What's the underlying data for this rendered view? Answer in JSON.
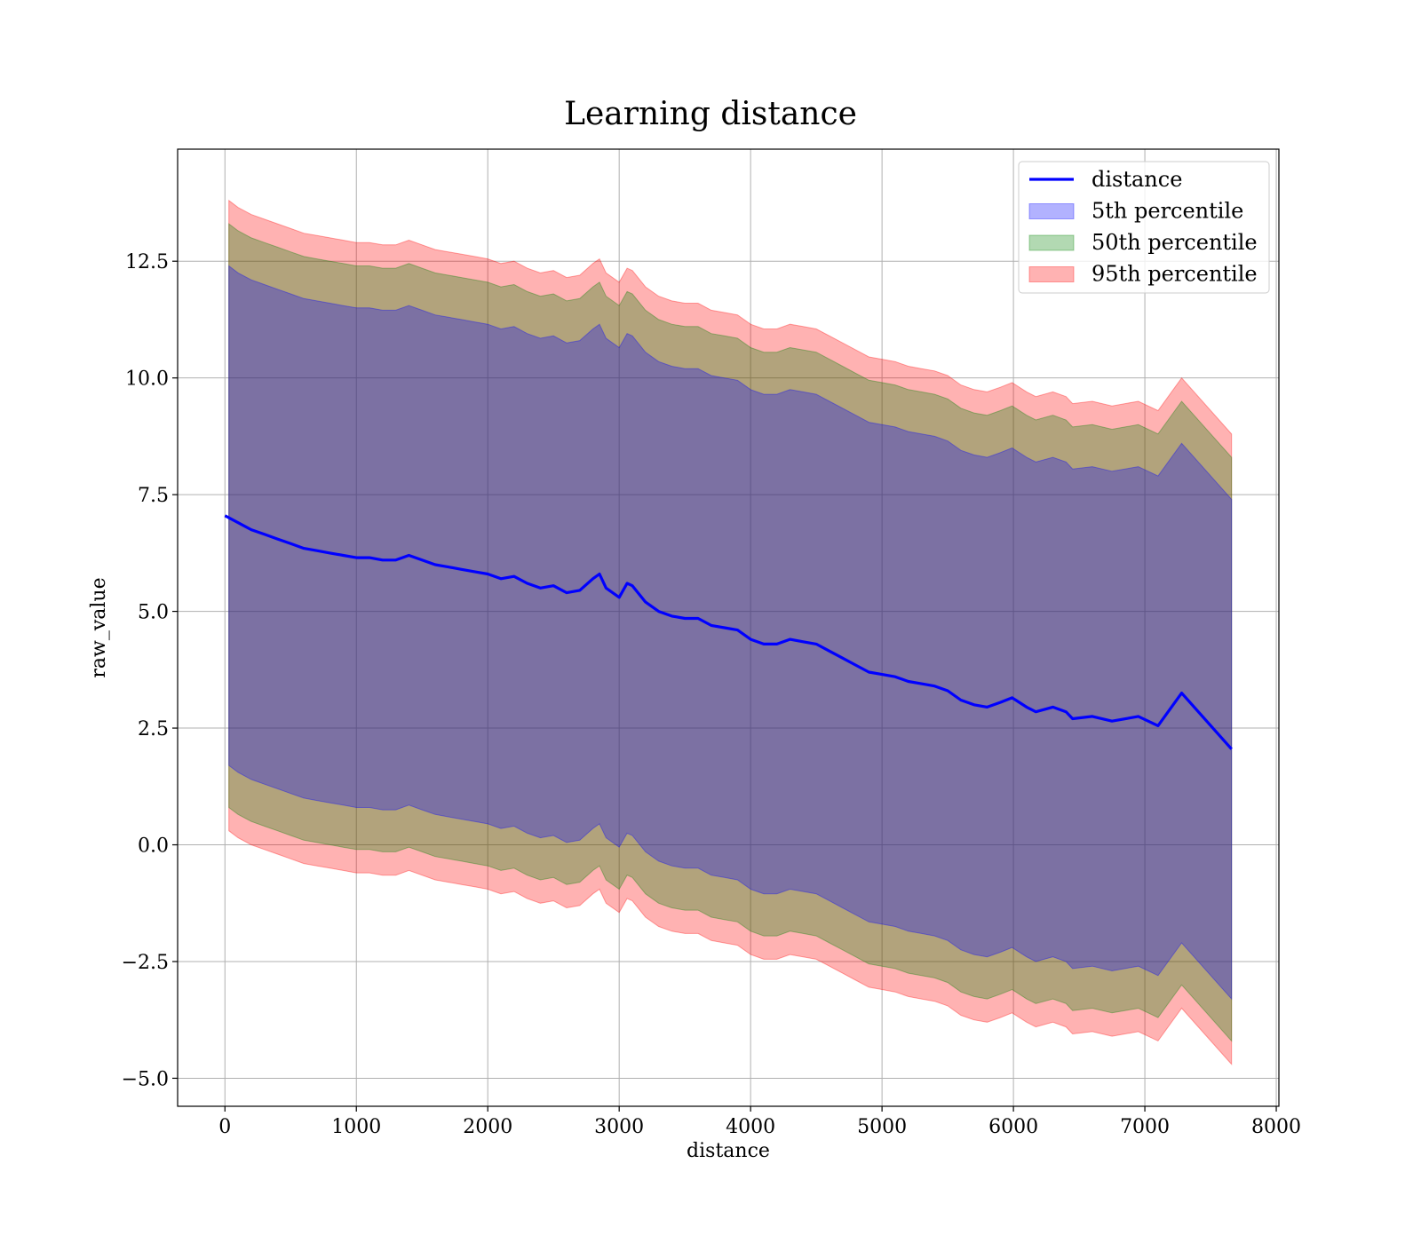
{
  "chart_data": {
    "type": "line",
    "title": "Learning distance",
    "xlabel": "distance",
    "ylabel": "raw_value",
    "xlim": [
      -360,
      8020
    ],
    "ylim": [
      -5.6,
      14.9
    ],
    "x_ticks": [
      0,
      1000,
      2000,
      3000,
      4000,
      5000,
      6000,
      7000,
      8000
    ],
    "x_tick_labels": [
      "0",
      "1000",
      "2000",
      "3000",
      "4000",
      "5000",
      "6000",
      "7000",
      "8000"
    ],
    "y_ticks": [
      -5.0,
      -2.5,
      0.0,
      2.5,
      5.0,
      7.5,
      10.0,
      12.5
    ],
    "y_tick_labels": [
      "−5.0",
      "−2.5",
      "0.0",
      "2.5",
      "5.0",
      "7.5",
      "10.0",
      "12.5"
    ],
    "grid": true,
    "legend_position": "top-right",
    "legend": [
      {
        "label": "distance",
        "kind": "line",
        "color": "#0000ff"
      },
      {
        "label": "5th percentile",
        "kind": "band",
        "color": "#0000ff"
      },
      {
        "label": "50th percentile",
        "kind": "band",
        "color": "#008000"
      },
      {
        "label": "95th percentile",
        "kind": "band",
        "color": "#ff0000"
      }
    ],
    "series": [
      {
        "name": "distance",
        "kind": "line",
        "color": "#0000ff",
        "x": [
          0,
          100,
          200,
          300,
          400,
          500,
          600,
          700,
          800,
          900,
          1000,
          1100,
          1200,
          1300,
          1400,
          1500,
          1600,
          1700,
          1800,
          1900,
          2000,
          2100,
          2200,
          2300,
          2400,
          2500,
          2600,
          2700,
          2800,
          2850,
          2900,
          3000,
          3060,
          3100,
          3200,
          3300,
          3400,
          3500,
          3600,
          3700,
          3800,
          3900,
          4000,
          4100,
          4200,
          4300,
          4400,
          4500,
          4600,
          4700,
          4800,
          4900,
          5000,
          5100,
          5200,
          5300,
          5400,
          5500,
          5600,
          5700,
          5800,
          5900,
          5990,
          6100,
          6170,
          6300,
          6400,
          6450,
          6600,
          6750,
          6950,
          7100,
          7280,
          7660
        ],
        "values": [
          7.05,
          6.9,
          6.75,
          6.65,
          6.55,
          6.45,
          6.35,
          6.3,
          6.25,
          6.2,
          6.15,
          6.15,
          6.1,
          6.1,
          6.2,
          6.1,
          6.0,
          5.95,
          5.9,
          5.85,
          5.8,
          5.7,
          5.75,
          5.6,
          5.5,
          5.55,
          5.4,
          5.45,
          5.7,
          5.8,
          5.5,
          5.3,
          5.6,
          5.55,
          5.2,
          5.0,
          4.9,
          4.85,
          4.85,
          4.7,
          4.65,
          4.6,
          4.4,
          4.3,
          4.3,
          4.4,
          4.35,
          4.3,
          4.15,
          4.0,
          3.85,
          3.7,
          3.65,
          3.6,
          3.5,
          3.45,
          3.4,
          3.3,
          3.1,
          3.0,
          2.95,
          3.05,
          3.15,
          2.95,
          2.85,
          2.95,
          2.85,
          2.7,
          2.75,
          2.65,
          2.75,
          2.55,
          3.25,
          2.05
        ]
      },
      {
        "name": "5th percentile",
        "kind": "band",
        "color": "#0000ff",
        "x": [
          30,
          100,
          200,
          300,
          400,
          500,
          600,
          700,
          800,
          900,
          1000,
          1100,
          1200,
          1300,
          1400,
          1500,
          1600,
          1700,
          1800,
          1900,
          2000,
          2100,
          2200,
          2300,
          2400,
          2500,
          2600,
          2700,
          2800,
          2850,
          2900,
          3000,
          3060,
          3100,
          3200,
          3300,
          3400,
          3500,
          3600,
          3700,
          3800,
          3900,
          4000,
          4100,
          4200,
          4300,
          4400,
          4500,
          4600,
          4700,
          4800,
          4900,
          5000,
          5100,
          5200,
          5300,
          5400,
          5500,
          5600,
          5700,
          5800,
          5900,
          5990,
          6100,
          6170,
          6300,
          6400,
          6450,
          6600,
          6750,
          6950,
          7100,
          7280,
          7660
        ],
        "lower": [
          1.7,
          1.55,
          1.4,
          1.3,
          1.2,
          1.1,
          1.0,
          0.95,
          0.9,
          0.85,
          0.8,
          0.8,
          0.75,
          0.75,
          0.85,
          0.75,
          0.65,
          0.6,
          0.55,
          0.5,
          0.45,
          0.35,
          0.4,
          0.25,
          0.15,
          0.2,
          0.05,
          0.1,
          0.35,
          0.45,
          0.15,
          -0.05,
          0.25,
          0.2,
          -0.15,
          -0.35,
          -0.45,
          -0.5,
          -0.5,
          -0.65,
          -0.7,
          -0.75,
          -0.95,
          -1.05,
          -1.05,
          -0.95,
          -1.0,
          -1.05,
          -1.2,
          -1.35,
          -1.5,
          -1.65,
          -1.7,
          -1.75,
          -1.85,
          -1.9,
          -1.95,
          -2.05,
          -2.25,
          -2.35,
          -2.4,
          -2.3,
          -2.2,
          -2.4,
          -2.5,
          -2.4,
          -2.5,
          -2.65,
          -2.6,
          -2.7,
          -2.6,
          -2.8,
          -2.1,
          -3.3
        ],
        "upper": [
          12.4,
          12.25,
          12.1,
          12.0,
          11.9,
          11.8,
          11.7,
          11.65,
          11.6,
          11.55,
          11.5,
          11.5,
          11.45,
          11.45,
          11.55,
          11.45,
          11.35,
          11.3,
          11.25,
          11.2,
          11.15,
          11.05,
          11.1,
          10.95,
          10.85,
          10.9,
          10.75,
          10.8,
          11.05,
          11.15,
          10.85,
          10.65,
          10.95,
          10.9,
          10.55,
          10.35,
          10.25,
          10.2,
          10.2,
          10.05,
          10.0,
          9.95,
          9.75,
          9.65,
          9.65,
          9.75,
          9.7,
          9.65,
          9.5,
          9.35,
          9.2,
          9.05,
          9.0,
          8.95,
          8.85,
          8.8,
          8.75,
          8.65,
          8.45,
          8.35,
          8.3,
          8.4,
          8.5,
          8.3,
          8.2,
          8.3,
          8.2,
          8.05,
          8.1,
          8.0,
          8.1,
          7.9,
          8.6,
          7.4
        ]
      },
      {
        "name": "50th percentile",
        "kind": "band",
        "color": "#008000",
        "x": [
          30,
          100,
          200,
          300,
          400,
          500,
          600,
          700,
          800,
          900,
          1000,
          1100,
          1200,
          1300,
          1400,
          1500,
          1600,
          1700,
          1800,
          1900,
          2000,
          2100,
          2200,
          2300,
          2400,
          2500,
          2600,
          2700,
          2800,
          2850,
          2900,
          3000,
          3060,
          3100,
          3200,
          3300,
          3400,
          3500,
          3600,
          3700,
          3800,
          3900,
          4000,
          4100,
          4200,
          4300,
          4400,
          4500,
          4600,
          4700,
          4800,
          4900,
          5000,
          5100,
          5200,
          5300,
          5400,
          5500,
          5600,
          5700,
          5800,
          5900,
          5990,
          6100,
          6170,
          6300,
          6400,
          6450,
          6600,
          6750,
          6950,
          7100,
          7280,
          7660
        ],
        "lower": [
          0.8,
          0.65,
          0.5,
          0.4,
          0.3,
          0.2,
          0.1,
          0.05,
          0.0,
          -0.05,
          -0.1,
          -0.1,
          -0.15,
          -0.15,
          -0.05,
          -0.15,
          -0.25,
          -0.3,
          -0.35,
          -0.4,
          -0.45,
          -0.55,
          -0.5,
          -0.65,
          -0.75,
          -0.7,
          -0.85,
          -0.8,
          -0.55,
          -0.45,
          -0.75,
          -0.95,
          -0.65,
          -0.7,
          -1.05,
          -1.25,
          -1.35,
          -1.4,
          -1.4,
          -1.55,
          -1.6,
          -1.65,
          -1.85,
          -1.95,
          -1.95,
          -1.85,
          -1.9,
          -1.95,
          -2.1,
          -2.25,
          -2.4,
          -2.55,
          -2.6,
          -2.65,
          -2.75,
          -2.8,
          -2.85,
          -2.95,
          -3.15,
          -3.25,
          -3.3,
          -3.2,
          -3.1,
          -3.3,
          -3.4,
          -3.3,
          -3.4,
          -3.55,
          -3.5,
          -3.6,
          -3.5,
          -3.7,
          -3.0,
          -4.2
        ],
        "upper": [
          13.3,
          13.15,
          13.0,
          12.9,
          12.8,
          12.7,
          12.6,
          12.55,
          12.5,
          12.45,
          12.4,
          12.4,
          12.35,
          12.35,
          12.45,
          12.35,
          12.25,
          12.2,
          12.15,
          12.1,
          12.05,
          11.95,
          12.0,
          11.85,
          11.75,
          11.8,
          11.65,
          11.7,
          11.95,
          12.05,
          11.75,
          11.55,
          11.85,
          11.8,
          11.45,
          11.25,
          11.15,
          11.1,
          11.1,
          10.95,
          10.9,
          10.85,
          10.65,
          10.55,
          10.55,
          10.65,
          10.6,
          10.55,
          10.4,
          10.25,
          10.1,
          9.95,
          9.9,
          9.85,
          9.75,
          9.7,
          9.65,
          9.55,
          9.35,
          9.25,
          9.2,
          9.3,
          9.4,
          9.2,
          9.1,
          9.2,
          9.1,
          8.95,
          9.0,
          8.9,
          9.0,
          8.8,
          9.5,
          8.3
        ]
      },
      {
        "name": "95th percentile",
        "kind": "band",
        "color": "#ff0000",
        "x": [
          30,
          100,
          200,
          300,
          400,
          500,
          600,
          700,
          800,
          900,
          1000,
          1100,
          1200,
          1300,
          1400,
          1500,
          1600,
          1700,
          1800,
          1900,
          2000,
          2100,
          2200,
          2300,
          2400,
          2500,
          2600,
          2700,
          2800,
          2850,
          2900,
          3000,
          3060,
          3100,
          3200,
          3300,
          3400,
          3500,
          3600,
          3700,
          3800,
          3900,
          4000,
          4100,
          4200,
          4300,
          4400,
          4500,
          4600,
          4700,
          4800,
          4900,
          5000,
          5100,
          5200,
          5300,
          5400,
          5500,
          5600,
          5700,
          5800,
          5900,
          5990,
          6100,
          6170,
          6300,
          6400,
          6450,
          6600,
          6750,
          6950,
          7100,
          7280,
          7660
        ],
        "lower": [
          0.3,
          0.15,
          0.0,
          -0.1,
          -0.2,
          -0.3,
          -0.4,
          -0.45,
          -0.5,
          -0.55,
          -0.6,
          -0.6,
          -0.65,
          -0.65,
          -0.55,
          -0.65,
          -0.75,
          -0.8,
          -0.85,
          -0.9,
          -0.95,
          -1.05,
          -1.0,
          -1.15,
          -1.25,
          -1.2,
          -1.35,
          -1.3,
          -1.05,
          -0.95,
          -1.25,
          -1.45,
          -1.15,
          -1.2,
          -1.55,
          -1.75,
          -1.85,
          -1.9,
          -1.9,
          -2.05,
          -2.1,
          -2.15,
          -2.35,
          -2.45,
          -2.45,
          -2.35,
          -2.4,
          -2.45,
          -2.6,
          -2.75,
          -2.9,
          -3.05,
          -3.1,
          -3.15,
          -3.25,
          -3.3,
          -3.35,
          -3.45,
          -3.65,
          -3.75,
          -3.8,
          -3.7,
          -3.6,
          -3.8,
          -3.9,
          -3.8,
          -3.9,
          -4.05,
          -4.0,
          -4.1,
          -4.0,
          -4.2,
          -3.5,
          -4.7
        ],
        "upper": [
          13.8,
          13.65,
          13.5,
          13.4,
          13.3,
          13.2,
          13.1,
          13.05,
          13.0,
          12.95,
          12.9,
          12.9,
          12.85,
          12.85,
          12.95,
          12.85,
          12.75,
          12.7,
          12.65,
          12.6,
          12.55,
          12.45,
          12.5,
          12.35,
          12.25,
          12.3,
          12.15,
          12.2,
          12.45,
          12.55,
          12.25,
          12.05,
          12.35,
          12.3,
          11.95,
          11.75,
          11.65,
          11.6,
          11.6,
          11.45,
          11.4,
          11.35,
          11.15,
          11.05,
          11.05,
          11.15,
          11.1,
          11.05,
          10.9,
          10.75,
          10.6,
          10.45,
          10.4,
          10.35,
          10.25,
          10.2,
          10.15,
          10.05,
          9.85,
          9.75,
          9.7,
          9.8,
          9.9,
          9.7,
          9.6,
          9.7,
          9.6,
          9.45,
          9.5,
          9.4,
          9.5,
          9.3,
          10.0,
          8.8
        ]
      }
    ]
  }
}
